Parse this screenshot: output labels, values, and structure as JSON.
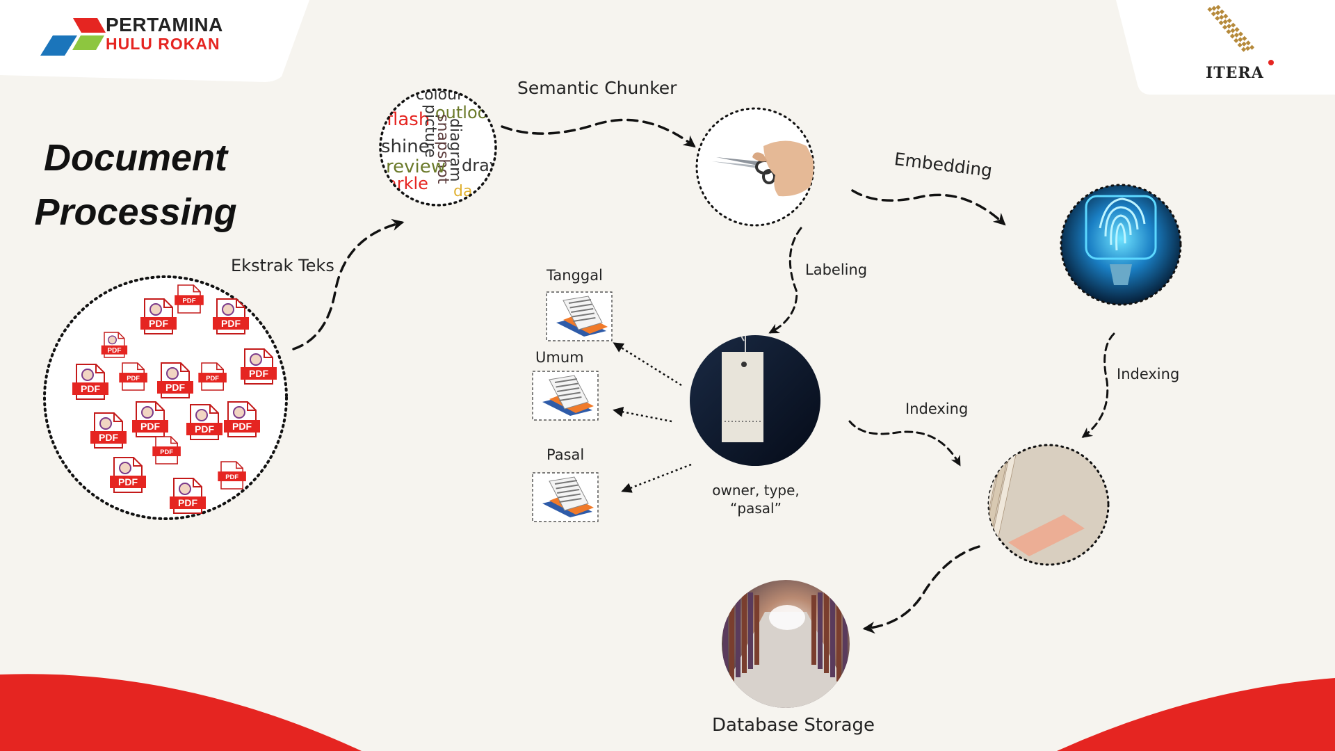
{
  "title": {
    "line1": "Document",
    "line2": "Processing"
  },
  "logos": {
    "left_line1": "PERTAMINA",
    "left_line2": "HULU ROKAN",
    "right": "ITERA"
  },
  "steps": {
    "extract": "Ekstrak Teks",
    "chunker": "Semantic Chunker",
    "embedding": "Embedding",
    "labeling": "Labeling",
    "indexing_main": "Indexing",
    "indexing_right": "Indexing",
    "storage": "Database Storage"
  },
  "metadata_labels": {
    "tanggal": "Tanggal",
    "umum": "Umum",
    "pasal": "Pasal"
  },
  "label_fields": {
    "line1": "owner, type,",
    "line2": "“pasal”"
  },
  "pdf_text": "PDF",
  "word_cloud": [
    "colour",
    "flash",
    "outloo",
    "shine",
    "picture",
    "diagram",
    "snapshot",
    "review",
    "dray",
    "arkle",
    "da"
  ],
  "colors": {
    "accent_red": "#e52521",
    "pertamina_blue": "#1b75bb",
    "pertamina_green": "#8dc63f",
    "itera_gold": "#b5893a"
  }
}
